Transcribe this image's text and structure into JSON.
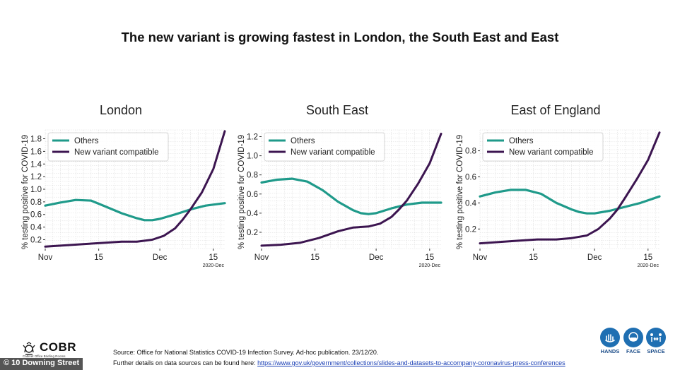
{
  "title": "The new variant is growing fastest in London, the South East and East",
  "colors": {
    "others": "#1f9a8a",
    "variant": "#3c1550",
    "grid": "#d9d9d9"
  },
  "chart_data": [
    {
      "type": "line",
      "title": "London",
      "ylabel": "% testing positive for COVID-19",
      "ylim": [
        0.06,
        1.94
      ],
      "yticks": [
        0.2,
        0.4,
        0.6,
        0.8,
        1.0,
        1.2,
        1.4,
        1.6,
        1.8
      ],
      "ytick_labels": [
        "0.2",
        "0.4",
        "0.6",
        "0.8",
        "1.0",
        "1.2",
        "1.4",
        "1.6",
        "1.8"
      ],
      "xlim": [
        0,
        47
      ],
      "xticks": [
        0,
        14,
        30,
        44
      ],
      "xtick_labels": [
        "Nov",
        "15",
        "Dec",
        "15"
      ],
      "x_extra_label": "2020-Dec",
      "legend": [
        "Others",
        "New variant compatible"
      ],
      "series": [
        {
          "name": "Others",
          "x": [
            0,
            4,
            8,
            12,
            16,
            20,
            24,
            26,
            28,
            30,
            34,
            38,
            42,
            47
          ],
          "values": [
            0.74,
            0.79,
            0.83,
            0.82,
            0.72,
            0.62,
            0.54,
            0.51,
            0.51,
            0.53,
            0.6,
            0.68,
            0.74,
            0.78
          ]
        },
        {
          "name": "New variant compatible",
          "x": [
            0,
            5,
            10,
            15,
            20,
            24,
            28,
            31,
            34,
            36,
            38,
            41,
            44,
            47
          ],
          "values": [
            0.09,
            0.11,
            0.13,
            0.15,
            0.17,
            0.17,
            0.2,
            0.26,
            0.38,
            0.52,
            0.68,
            0.95,
            1.32,
            1.92
          ]
        }
      ]
    },
    {
      "type": "line",
      "title": "South East",
      "ylabel": "% testing positive for COVID-19",
      "ylim": [
        0.03,
        1.27
      ],
      "yticks": [
        0.2,
        0.4,
        0.6,
        0.8,
        1.0,
        1.2
      ],
      "ytick_labels": [
        "0.2",
        "0.4",
        "0.6",
        "0.8",
        "1.0",
        "1.2"
      ],
      "xlim": [
        0,
        47
      ],
      "xticks": [
        0,
        14,
        30,
        44
      ],
      "xtick_labels": [
        "Nov",
        "15",
        "Dec",
        "15"
      ],
      "x_extra_label": "2020-Dec",
      "legend": [
        "Others",
        "New variant compatible"
      ],
      "series": [
        {
          "name": "Others",
          "x": [
            0,
            4,
            8,
            12,
            16,
            20,
            24,
            26,
            28,
            30,
            34,
            38,
            42,
            47
          ],
          "values": [
            0.72,
            0.75,
            0.76,
            0.73,
            0.64,
            0.52,
            0.43,
            0.4,
            0.39,
            0.4,
            0.45,
            0.49,
            0.51,
            0.51
          ]
        },
        {
          "name": "New variant compatible",
          "x": [
            0,
            5,
            10,
            15,
            20,
            24,
            28,
            31,
            34,
            36,
            38,
            41,
            44,
            47
          ],
          "values": [
            0.06,
            0.07,
            0.09,
            0.14,
            0.21,
            0.25,
            0.26,
            0.29,
            0.36,
            0.44,
            0.53,
            0.71,
            0.92,
            1.23
          ]
        }
      ]
    },
    {
      "type": "line",
      "title": "East of England",
      "ylabel": "% testing positive for COVID-19",
      "ylim": [
        0.05,
        0.96
      ],
      "yticks": [
        0.2,
        0.4,
        0.6,
        0.8
      ],
      "ytick_labels": [
        "0.2",
        "0.4",
        "0.6",
        "0.8"
      ],
      "xlim": [
        0,
        47
      ],
      "xticks": [
        0,
        14,
        30,
        44
      ],
      "xtick_labels": [
        "Nov",
        "15",
        "Dec",
        "15"
      ],
      "x_extra_label": "2020-Dec",
      "legend": [
        "Others",
        "New variant compatible"
      ],
      "series": [
        {
          "name": "Others",
          "x": [
            0,
            4,
            8,
            12,
            16,
            20,
            24,
            26,
            28,
            30,
            34,
            38,
            42,
            47
          ],
          "values": [
            0.45,
            0.48,
            0.5,
            0.5,
            0.47,
            0.4,
            0.35,
            0.33,
            0.32,
            0.32,
            0.34,
            0.37,
            0.4,
            0.45
          ]
        },
        {
          "name": "New variant compatible",
          "x": [
            0,
            5,
            10,
            15,
            20,
            24,
            28,
            31,
            34,
            36,
            38,
            41,
            44,
            47
          ],
          "values": [
            0.09,
            0.1,
            0.11,
            0.12,
            0.12,
            0.13,
            0.15,
            0.2,
            0.28,
            0.35,
            0.44,
            0.58,
            0.73,
            0.94
          ]
        }
      ]
    }
  ],
  "footer": {
    "logo_text": "COBR",
    "logo_subtext": "Cabinet Office Briefing Rooms",
    "copyright": "© 10 Downing Street",
    "source_line": "Source: Office for National Statistics COVID-19 Infection Survey. Ad-hoc publication. 23/12/20.",
    "details_prefix": "Further details on data sources can be found here:",
    "details_link": "https://www.gov.uk/government/collections/slides-and-datasets-to-accompany-coronavirus-press-conferences",
    "hands_label": "HANDS",
    "face_label": "FACE",
    "space_label": "SPACE"
  }
}
